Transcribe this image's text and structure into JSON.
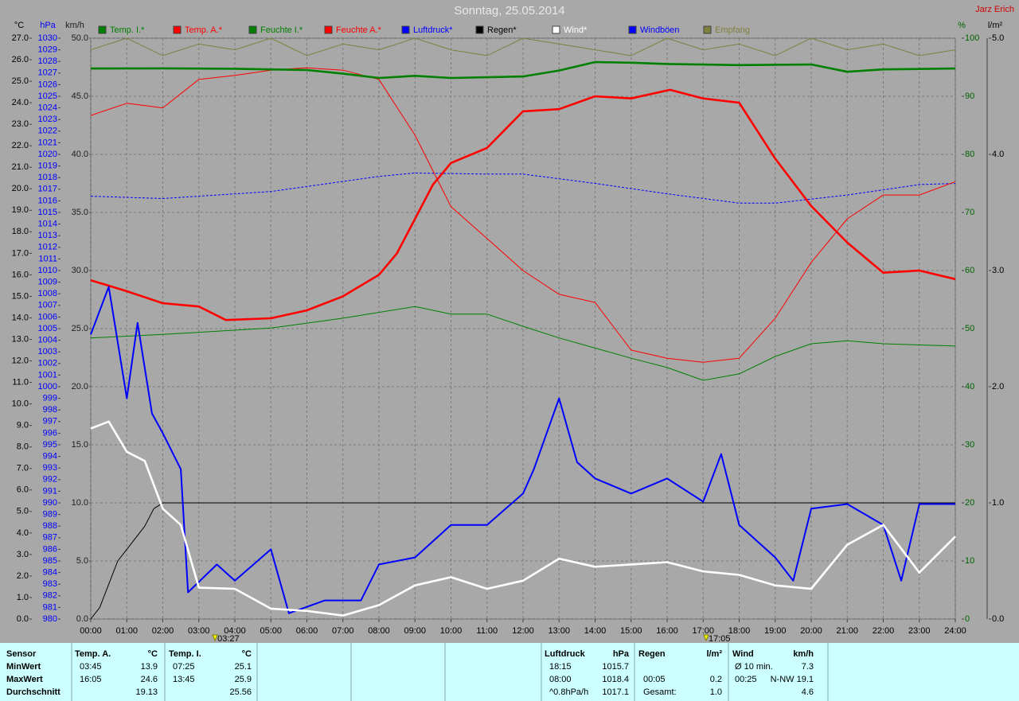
{
  "chart_data": {
    "type": "line",
    "title": "Sonntag, 25.05.2014",
    "author": "Jarz Erich",
    "xlim": [
      0,
      24
    ],
    "xticks": [
      {
        "value": 0,
        "label": "00:00"
      },
      {
        "value": 1,
        "label": "01:00"
      },
      {
        "value": 2,
        "label": "02:00"
      },
      {
        "value": 3,
        "label": "03:00"
      },
      {
        "value": 4,
        "label": "04:00"
      },
      {
        "value": 5,
        "label": "05:00"
      },
      {
        "value": 6,
        "label": "06:00"
      },
      {
        "value": 7,
        "label": "07:00"
      },
      {
        "value": 8,
        "label": "08:00"
      },
      {
        "value": 9,
        "label": "09:00"
      },
      {
        "value": 10,
        "label": "10:00"
      },
      {
        "value": 11,
        "label": "11:00"
      },
      {
        "value": 12,
        "label": "12:00"
      },
      {
        "value": 13,
        "label": "13:00"
      },
      {
        "value": 14,
        "label": "14:00"
      },
      {
        "value": 15,
        "label": "15:00"
      },
      {
        "value": 16,
        "label": "16:00"
      },
      {
        "value": 17,
        "label": "17:00"
      },
      {
        "value": 18,
        "label": "18:00"
      },
      {
        "value": 19,
        "label": "19:00"
      },
      {
        "value": 20,
        "label": "20:00"
      },
      {
        "value": 21,
        "label": "21:00"
      },
      {
        "value": 22,
        "label": "22:00"
      },
      {
        "value": 23,
        "label": "23:00"
      },
      {
        "value": 24,
        "label": "24:00"
      }
    ],
    "grid": true,
    "annotations": [
      {
        "x": 3.45,
        "label": "03:27"
      },
      {
        "x": 17.083,
        "label": "17:05"
      }
    ],
    "axes": {
      "temp": {
        "unit": "°C",
        "color": "#000000",
        "lim": [
          0,
          27
        ],
        "ticks": [
          {
            "value": 0,
            "label": "0.0"
          },
          {
            "value": 1,
            "label": "1.0"
          },
          {
            "value": 2,
            "label": "2.0"
          },
          {
            "value": 3,
            "label": "3.0"
          },
          {
            "value": 4,
            "label": "4.0"
          },
          {
            "value": 5,
            "label": "5.0"
          },
          {
            "value": 6,
            "label": "6.0"
          },
          {
            "value": 7,
            "label": "7.0"
          },
          {
            "value": 8,
            "label": "8.0"
          },
          {
            "value": 9,
            "label": "9.0"
          },
          {
            "value": 10,
            "label": "10.0"
          },
          {
            "value": 11,
            "label": "11.0"
          },
          {
            "value": 12,
            "label": "12.0"
          },
          {
            "value": 13,
            "label": "13.0"
          },
          {
            "value": 14,
            "label": "14.0"
          },
          {
            "value": 15,
            "label": "15.0"
          },
          {
            "value": 16,
            "label": "16.0"
          },
          {
            "value": 17,
            "label": "17.0"
          },
          {
            "value": 18,
            "label": "18.0"
          },
          {
            "value": 19,
            "label": "19.0"
          },
          {
            "value": 20,
            "label": "20.0"
          },
          {
            "value": 21,
            "label": "21.0"
          },
          {
            "value": 22,
            "label": "22.0"
          },
          {
            "value": 23,
            "label": "23.0"
          },
          {
            "value": 24,
            "label": "24.0"
          },
          {
            "value": 25,
            "label": "25.0"
          },
          {
            "value": 26,
            "label": "26.0"
          },
          {
            "value": 27,
            "label": "27.0"
          }
        ]
      },
      "pressure": {
        "unit": "hPa",
        "color": "#0000ff",
        "lim": [
          980,
          1030
        ],
        "ticks": [
          980,
          981,
          982,
          983,
          984,
          985,
          986,
          987,
          988,
          989,
          990,
          991,
          992,
          993,
          994,
          995,
          996,
          997,
          998,
          999,
          1000,
          1001,
          1002,
          1003,
          1004,
          1005,
          1006,
          1007,
          1008,
          1009,
          1010,
          1011,
          1012,
          1013,
          1014,
          1015,
          1016,
          1017,
          1018,
          1019,
          1020,
          1021,
          1022,
          1023,
          1024,
          1025,
          1026,
          1027,
          1028,
          1029,
          1030
        ]
      },
      "speed": {
        "unit": "km/h",
        "color": "#202020",
        "lim": [
          0,
          50
        ],
        "grid": true,
        "ticks": [
          {
            "value": 0,
            "label": "0.0"
          },
          {
            "value": 5,
            "label": "5.0"
          },
          {
            "value": 10,
            "label": "10.0"
          },
          {
            "value": 15,
            "label": "15.0"
          },
          {
            "value": 20,
            "label": "20.0"
          },
          {
            "value": 25,
            "label": "25.0"
          },
          {
            "value": 30,
            "label": "30.0"
          },
          {
            "value": 35,
            "label": "35.0"
          },
          {
            "value": 40,
            "label": "40.0"
          },
          {
            "value": 45,
            "label": "45.0"
          },
          {
            "value": 50,
            "label": "50.0"
          }
        ]
      },
      "humidity": {
        "unit": "%",
        "color": "#006400",
        "lim": [
          0,
          100
        ],
        "ticks": [
          0,
          10,
          20,
          30,
          40,
          50,
          60,
          70,
          80,
          90,
          100
        ]
      },
      "rain": {
        "unit": "l/m²",
        "color": "#000000",
        "lim": [
          0,
          5
        ],
        "ticks": [
          {
            "value": 0,
            "label": "0.0"
          },
          {
            "value": 1,
            "label": "1.0"
          },
          {
            "value": 2,
            "label": "2.0"
          },
          {
            "value": 3,
            "label": "3.0"
          },
          {
            "value": 4,
            "label": "4.0"
          },
          {
            "value": 5,
            "label": "5.0"
          }
        ]
      }
    },
    "series": [
      {
        "name": "Temp. I.*",
        "color": "#008000",
        "axis": "temp",
        "style": "thick",
        "x": [
          0,
          2,
          4,
          6,
          7,
          8,
          9,
          10,
          12,
          13,
          14,
          15,
          16,
          18,
          20,
          21,
          22,
          24
        ],
        "values": [
          25.59,
          25.6,
          25.58,
          25.52,
          25.35,
          25.15,
          25.25,
          25.15,
          25.22,
          25.5,
          25.89,
          25.86,
          25.8,
          25.75,
          25.78,
          25.44,
          25.55,
          25.59
        ]
      },
      {
        "name": "Temp. A.*",
        "color": "#ff0000",
        "axis": "temp",
        "style": "thick",
        "x": [
          0,
          1,
          2,
          3,
          3.75,
          5,
          6,
          7,
          8,
          8.5,
          9,
          9.5,
          10,
          11,
          12,
          13,
          14,
          15,
          16.08,
          17,
          18,
          19,
          20,
          21,
          22,
          23,
          24
        ],
        "values": [
          15.75,
          15.24,
          14.68,
          14.53,
          13.9,
          13.98,
          14.35,
          15.0,
          16.0,
          17.0,
          18.6,
          20.2,
          21.2,
          21.9,
          23.6,
          23.7,
          24.3,
          24.2,
          24.6,
          24.2,
          24.0,
          21.4,
          19.2,
          17.5,
          16.1,
          16.2,
          15.8
        ]
      },
      {
        "name": "Feuchte I.*",
        "color": "#008000",
        "axis": "humidity",
        "style": "thin",
        "x": [
          0,
          2,
          5,
          7,
          9,
          10,
          11,
          12,
          13,
          15,
          16,
          17,
          18,
          19,
          20,
          21,
          22,
          24
        ],
        "values": [
          48.4,
          49,
          50.1,
          51.8,
          53.8,
          52.5,
          52.5,
          50.4,
          48.4,
          44.9,
          43.3,
          41.1,
          42.2,
          45.2,
          47.4,
          47.9,
          47.4,
          47
        ]
      },
      {
        "name": "Feuchte A.*",
        "color": "#ff0000",
        "axis": "humidity",
        "style": "thin",
        "x": [
          0,
          1,
          2,
          3,
          4,
          5,
          6,
          7,
          8,
          9,
          10,
          11,
          12,
          13,
          14,
          15,
          16,
          17,
          18,
          19,
          20,
          21,
          22,
          23,
          24
        ],
        "values": [
          86.7,
          88.8,
          88,
          92.9,
          93.6,
          94.5,
          94.9,
          94.5,
          92.9,
          83.3,
          71,
          65.5,
          60,
          55.9,
          54.5,
          46.3,
          44.9,
          44.2,
          44.9,
          51.8,
          61.4,
          68.9,
          73,
          73,
          75.3
        ]
      },
      {
        "name": "Luftdruck*",
        "color": "#0000ff",
        "axis": "pressure",
        "style": "dashed",
        "x": [
          0,
          2,
          5,
          8,
          9,
          11,
          12,
          14,
          16,
          18,
          19,
          21,
          23,
          24
        ],
        "values": [
          1016.4,
          1016.2,
          1016.8,
          1018.1,
          1018.4,
          1018.3,
          1018.3,
          1017.5,
          1016.6,
          1015.8,
          1015.8,
          1016.5,
          1017.4,
          1017.5
        ]
      },
      {
        "name": "Regen*",
        "color": "#000000",
        "axis": "rain",
        "style": "thin",
        "x": [
          0,
          0.25,
          0.5,
          0.75,
          1,
          1.25,
          1.5,
          1.75,
          2,
          3,
          6,
          12,
          18,
          24
        ],
        "values": [
          0,
          0.1,
          0.3,
          0.5,
          0.6,
          0.7,
          0.8,
          0.95,
          1.0,
          1.0,
          1.0,
          1.0,
          1.0,
          1.0
        ]
      },
      {
        "name": "Wind*",
        "color": "#ffffff",
        "axis": "speed",
        "style": "thick",
        "x": [
          0,
          0.5,
          1,
          1.5,
          2,
          2.5,
          3,
          4,
          5,
          6,
          7,
          8,
          9,
          10,
          11,
          12,
          13,
          14,
          15,
          16,
          17,
          18,
          19,
          20,
          21,
          22,
          23,
          24
        ],
        "values": [
          16.4,
          17,
          14.4,
          13.6,
          9.5,
          8.1,
          2.7,
          2.6,
          0.9,
          0.7,
          0.3,
          1.2,
          2.9,
          3.6,
          2.6,
          3.3,
          5.2,
          4.5,
          4.7,
          4.9,
          4.1,
          3.8,
          2.9,
          2.6,
          6.4,
          8.1,
          4.0,
          7.1
        ]
      },
      {
        "name": "Windböen",
        "color": "#0000ff",
        "axis": "speed",
        "style": "medium",
        "x": [
          0,
          0.5,
          1,
          1.3,
          1.7,
          2,
          2.5,
          2.7,
          3.5,
          4,
          5,
          5.5,
          6.5,
          7.5,
          8,
          9,
          10,
          11,
          12,
          12.3,
          13,
          13.5,
          14,
          15,
          16,
          17,
          17.5,
          18,
          19,
          19.5,
          20,
          21,
          22,
          22.5,
          23,
          24
        ],
        "values": [
          24.5,
          28.6,
          19,
          25.5,
          17.7,
          16,
          12.9,
          2.3,
          4.7,
          3.3,
          6,
          0.5,
          1.6,
          1.6,
          4.7,
          5.3,
          8.1,
          8.1,
          10.8,
          12.9,
          19,
          13.5,
          12.1,
          10.8,
          12.1,
          10.1,
          14.2,
          8.1,
          5.3,
          3.3,
          9.5,
          9.9,
          8.1,
          3.3,
          9.9,
          9.9
        ]
      },
      {
        "name": "Empfang",
        "color": "#808040",
        "axis": "humidity",
        "style": "thin",
        "x": [
          0,
          1,
          2,
          3,
          4,
          5,
          6,
          7,
          8,
          9,
          10,
          11,
          12,
          13,
          14,
          15,
          16,
          17,
          18,
          19,
          20,
          21,
          22,
          23,
          24
        ],
        "values": [
          98,
          100,
          97,
          99,
          98,
          100,
          97,
          99,
          98,
          100,
          98,
          97,
          100,
          99,
          98,
          97,
          100,
          98,
          99,
          97,
          100,
          98,
          99,
          97,
          98
        ]
      }
    ]
  },
  "stats": {
    "row_labels": [
      "Sensor",
      "MinWert",
      "MaxWert",
      "Durchschnitt"
    ],
    "blocks": [
      {
        "header": "Temp. A.",
        "unit": "°C",
        "rows": [
          {
            "time": "03:45",
            "value": "13.9"
          },
          {
            "time": "16:05",
            "value": "24.6"
          },
          {
            "value": "19.13"
          }
        ]
      },
      {
        "header": "Temp. I.",
        "unit": "°C",
        "rows": [
          {
            "time": "07:25",
            "value": "25.1"
          },
          {
            "time": "13:45",
            "value": "25.9"
          },
          {
            "value": "25.56"
          }
        ]
      },
      {
        "header": "Luftdruck",
        "unit": "hPa",
        "rows": [
          {
            "time": "18:15",
            "value": "1015.7"
          },
          {
            "time": "08:00",
            "value": "1018.4"
          },
          {
            "time": "^0.8hPa/h",
            "value": "1017.1"
          }
        ]
      },
      {
        "header": "Regen",
        "unit": "l/m²",
        "rows": [
          null,
          {
            "time": "00:05",
            "value": "0.2"
          },
          {
            "time": "Gesamt:",
            "value": "1.0"
          }
        ]
      },
      {
        "header": "Wind",
        "unit": "km/h",
        "rows": [
          {
            "time": "Ø 10 min.",
            "value": "7.3"
          },
          {
            "time": "00:25",
            "value": "N-NW 19.1"
          },
          {
            "value": "4.6"
          }
        ]
      }
    ]
  }
}
